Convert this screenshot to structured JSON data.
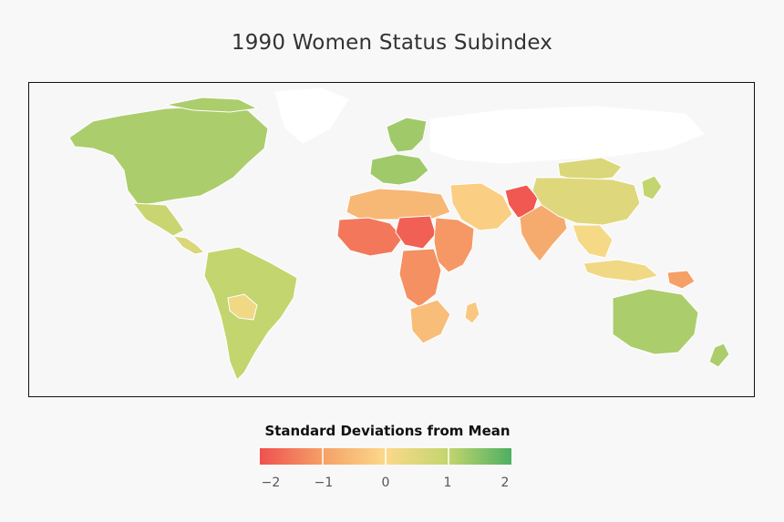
{
  "title": "1990 Women Status Subindex",
  "legend": {
    "title": "Standard Deviations from Mean",
    "ticks": [
      "−2",
      "−1",
      "0",
      "1",
      "2"
    ],
    "colors": [
      "#f0504f",
      "#f5a067",
      "#fbd98a",
      "#c3d56e",
      "#4daf62"
    ],
    "range": [
      -2,
      2
    ]
  },
  "map": {
    "type": "choropleth",
    "background": "#f7f7f7",
    "no_data_color": "#ffffff",
    "border_color": "#ffffff"
  },
  "chart_data": {
    "type": "choropleth",
    "title": "1990 Women Status Subindex",
    "legend_title": "Standard Deviations from Mean",
    "value_range": [
      -2,
      2
    ],
    "regions": [
      {
        "name": "North America",
        "value": 1.2
      },
      {
        "name": "Mexico",
        "value": 0.9
      },
      {
        "name": "Central America",
        "value": 0.6
      },
      {
        "name": "South America",
        "value": 1.0
      },
      {
        "name": "Bolivia / Paraguay",
        "value": 0.2
      },
      {
        "name": "Western Europe",
        "value": 1.3
      },
      {
        "name": "Scandinavia",
        "value": 1.3
      },
      {
        "name": "North Africa",
        "value": -0.6
      },
      {
        "name": "West Africa",
        "value": -1.5
      },
      {
        "name": "Sahel",
        "value": -1.8
      },
      {
        "name": "Central Africa",
        "value": -1.2
      },
      {
        "name": "East Africa",
        "value": -1.1
      },
      {
        "name": "Southern Africa",
        "value": -0.5
      },
      {
        "name": "Madagascar",
        "value": -0.3
      },
      {
        "name": "Middle East",
        "value": -0.2
      },
      {
        "name": "Afghanistan / Pakistan",
        "value": -1.9
      },
      {
        "name": "India",
        "value": -0.8
      },
      {
        "name": "China",
        "value": 0.5
      },
      {
        "name": "Mongolia",
        "value": 0.6
      },
      {
        "name": "Southeast Asia",
        "value": 0.1
      },
      {
        "name": "Indonesia",
        "value": 0.2
      },
      {
        "name": "Papua New Guinea",
        "value": -1.0
      },
      {
        "name": "Japan / Korea",
        "value": 1.0
      },
      {
        "name": "Australia",
        "value": 1.2
      },
      {
        "name": "New Zealand",
        "value": 1.2
      }
    ]
  }
}
